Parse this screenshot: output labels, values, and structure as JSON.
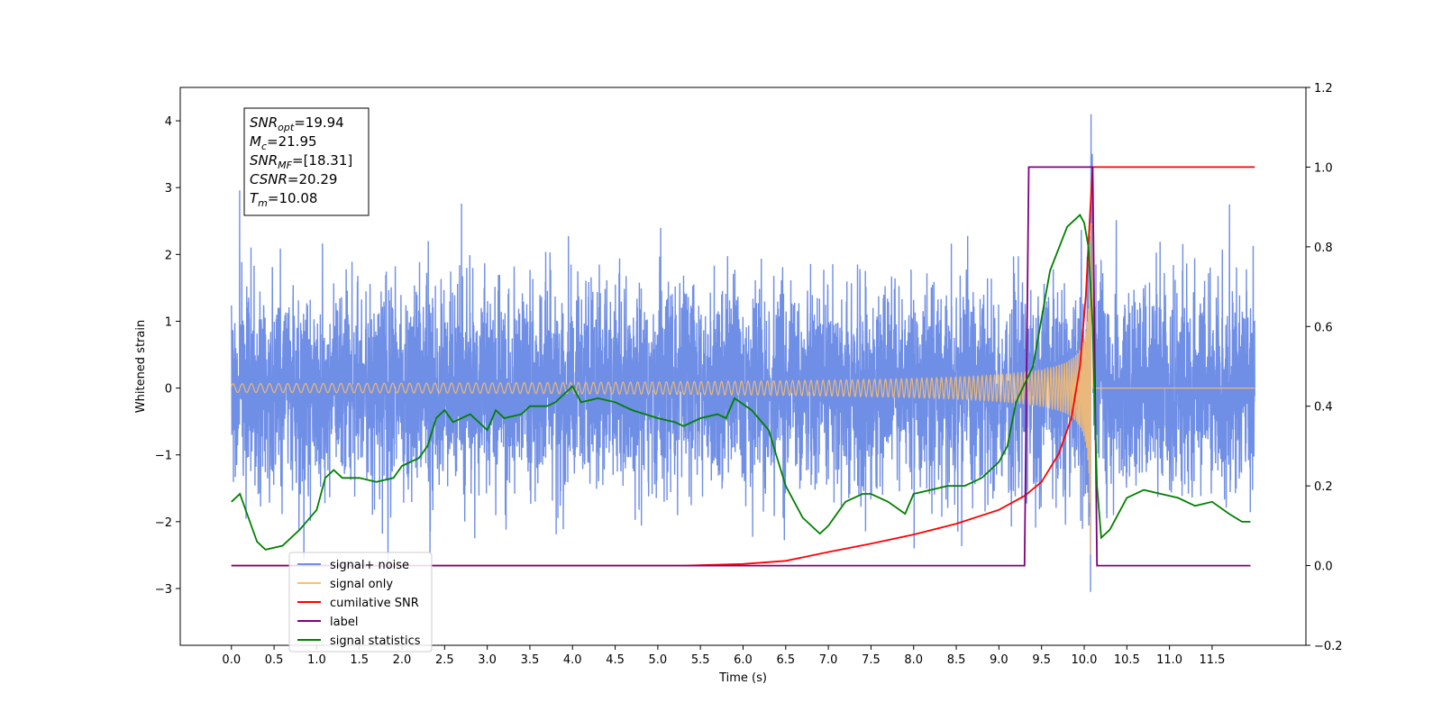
{
  "chart_data": {
    "type": "line",
    "xlabel": "Time (s)",
    "ylabel": "Whitened strain",
    "xlim": [
      -0.6,
      12.6
    ],
    "ylim": [
      -3.85,
      4.5
    ],
    "ylim_right": [
      -0.2,
      1.2
    ],
    "x_ticks": [
      "0.0",
      "0.5",
      "1.0",
      "1.5",
      "2.0",
      "2.5",
      "3.0",
      "3.5",
      "4.0",
      "4.5",
      "5.0",
      "5.5",
      "6.0",
      "6.5",
      "7.0",
      "7.5",
      "8.0",
      "8.5",
      "9.0",
      "9.5",
      "10.0",
      "10.5",
      "11.0",
      "11.5"
    ],
    "y_ticks_left": [
      "−3",
      "−2",
      "−1",
      "0",
      "1",
      "2",
      "3",
      "4"
    ],
    "y_ticks_right": [
      "−0.2",
      "0.0",
      "0.2",
      "0.4",
      "0.6",
      "0.8",
      "1.0",
      "1.2"
    ],
    "legend_position": "lower-left",
    "info_box": {
      "lines": [
        {
          "main": "SNR",
          "sub": "opt",
          "rest": "=19.94"
        },
        {
          "main": "M",
          "sub": "c",
          "rest": "=21.95"
        },
        {
          "main": "SNR",
          "sub": "MF",
          "rest": "=[18.31]"
        },
        {
          "main": "CSNR",
          "sub": "",
          "rest": "=20.29"
        },
        {
          "main": "T",
          "sub": "m",
          "rest": "=10.08"
        }
      ]
    },
    "series": [
      {
        "name": "signal+ noise",
        "color": "#6f8ee6",
        "axis": "left",
        "noise_sigma": 0.75,
        "x_range": [
          0.0,
          12.0
        ]
      },
      {
        "name": "signal only",
        "color": "#ffbf66",
        "axis": "left",
        "merger_time": 10.08,
        "peak_amplitude": 3.3
      },
      {
        "name": "cumilative SNR",
        "color": "#ff0000",
        "axis": "right",
        "points": [
          [
            0.0,
            0.0
          ],
          [
            5.3,
            0.0
          ],
          [
            6.0,
            0.004
          ],
          [
            6.5,
            0.012
          ],
          [
            7.0,
            0.034
          ],
          [
            7.5,
            0.055
          ],
          [
            8.0,
            0.078
          ],
          [
            8.5,
            0.105
          ],
          [
            9.0,
            0.14
          ],
          [
            9.3,
            0.175
          ],
          [
            9.5,
            0.21
          ],
          [
            9.7,
            0.28
          ],
          [
            9.85,
            0.37
          ],
          [
            9.95,
            0.5
          ],
          [
            10.02,
            0.68
          ],
          [
            10.06,
            0.85
          ],
          [
            10.1,
            1.0
          ],
          [
            12.0,
            1.0
          ]
        ]
      },
      {
        "name": "label",
        "color": "#800080",
        "axis": "right",
        "points": [
          [
            0.0,
            0.0
          ],
          [
            9.3,
            0.0
          ],
          [
            9.35,
            1.0
          ],
          [
            10.1,
            1.0
          ],
          [
            10.15,
            0.0
          ],
          [
            11.95,
            0.0
          ]
        ]
      },
      {
        "name": "signal statistics",
        "color": "#008000",
        "axis": "right",
        "points": [
          [
            0.0,
            0.16
          ],
          [
            0.1,
            0.18
          ],
          [
            0.2,
            0.12
          ],
          [
            0.3,
            0.06
          ],
          [
            0.4,
            0.04
          ],
          [
            0.6,
            0.05
          ],
          [
            0.8,
            0.09
          ],
          [
            1.0,
            0.14
          ],
          [
            1.1,
            0.22
          ],
          [
            1.2,
            0.24
          ],
          [
            1.3,
            0.22
          ],
          [
            1.5,
            0.22
          ],
          [
            1.7,
            0.21
          ],
          [
            1.9,
            0.22
          ],
          [
            2.0,
            0.25
          ],
          [
            2.2,
            0.27
          ],
          [
            2.3,
            0.3
          ],
          [
            2.4,
            0.37
          ],
          [
            2.5,
            0.39
          ],
          [
            2.6,
            0.36
          ],
          [
            2.8,
            0.38
          ],
          [
            2.9,
            0.36
          ],
          [
            3.0,
            0.34
          ],
          [
            3.1,
            0.39
          ],
          [
            3.2,
            0.37
          ],
          [
            3.4,
            0.38
          ],
          [
            3.5,
            0.4
          ],
          [
            3.7,
            0.4
          ],
          [
            3.8,
            0.41
          ],
          [
            4.0,
            0.45
          ],
          [
            4.1,
            0.41
          ],
          [
            4.3,
            0.42
          ],
          [
            4.5,
            0.41
          ],
          [
            4.7,
            0.39
          ],
          [
            5.0,
            0.37
          ],
          [
            5.2,
            0.36
          ],
          [
            5.3,
            0.35
          ],
          [
            5.5,
            0.37
          ],
          [
            5.7,
            0.38
          ],
          [
            5.8,
            0.37
          ],
          [
            5.9,
            0.42
          ],
          [
            6.1,
            0.39
          ],
          [
            6.3,
            0.34
          ],
          [
            6.4,
            0.27
          ],
          [
            6.5,
            0.2
          ],
          [
            6.7,
            0.12
          ],
          [
            6.9,
            0.08
          ],
          [
            7.0,
            0.1
          ],
          [
            7.2,
            0.16
          ],
          [
            7.4,
            0.18
          ],
          [
            7.5,
            0.18
          ],
          [
            7.7,
            0.16
          ],
          [
            7.9,
            0.13
          ],
          [
            8.0,
            0.18
          ],
          [
            8.2,
            0.19
          ],
          [
            8.4,
            0.2
          ],
          [
            8.6,
            0.2
          ],
          [
            8.8,
            0.22
          ],
          [
            9.0,
            0.26
          ],
          [
            9.1,
            0.3
          ],
          [
            9.2,
            0.41
          ],
          [
            9.4,
            0.5
          ],
          [
            9.6,
            0.74
          ],
          [
            9.8,
            0.85
          ],
          [
            9.95,
            0.88
          ],
          [
            10.0,
            0.86
          ],
          [
            10.05,
            0.8
          ],
          [
            10.1,
            0.6
          ],
          [
            10.15,
            0.2
          ],
          [
            10.2,
            0.07
          ],
          [
            10.3,
            0.09
          ],
          [
            10.5,
            0.17
          ],
          [
            10.7,
            0.19
          ],
          [
            10.9,
            0.18
          ],
          [
            11.1,
            0.17
          ],
          [
            11.3,
            0.15
          ],
          [
            11.5,
            0.16
          ],
          [
            11.7,
            0.13
          ],
          [
            11.85,
            0.11
          ],
          [
            11.95,
            0.11
          ]
        ]
      }
    ]
  }
}
